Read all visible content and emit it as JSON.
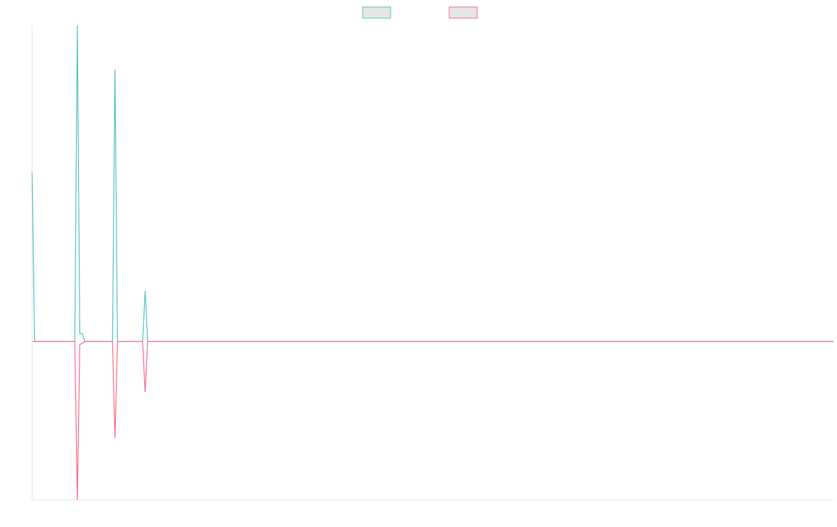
{
  "chart_data": {
    "type": "line",
    "title": "",
    "xlabel": "",
    "ylabel": "",
    "grid": false,
    "legend": "top-center",
    "x": [
      0,
      1,
      2,
      3,
      4,
      5,
      6,
      7,
      8,
      9,
      10,
      11,
      12,
      13,
      14,
      15,
      16,
      17,
      18,
      19,
      20,
      21,
      22,
      23,
      24,
      25,
      26,
      27,
      28,
      29,
      30,
      31,
      32,
      33,
      34,
      35,
      36,
      37,
      38,
      39,
      40,
      41,
      42,
      43,
      44,
      45,
      46,
      47,
      48,
      49,
      50,
      51,
      52,
      53,
      54,
      55,
      56,
      57,
      58,
      59,
      60,
      61,
      62,
      63,
      64,
      65,
      66,
      67,
      68,
      69,
      70,
      71,
      72,
      73,
      74,
      75,
      76,
      77,
      78,
      79,
      80,
      81,
      82,
      83,
      84,
      85,
      86,
      87,
      88,
      89,
      90,
      91,
      92,
      93,
      94,
      95,
      96,
      97,
      98,
      99,
      100,
      101,
      102,
      103,
      104,
      105,
      106,
      107,
      108,
      109,
      110,
      111,
      112,
      113,
      114,
      115,
      116,
      117,
      118,
      119,
      120,
      121,
      122,
      123,
      124,
      125,
      126,
      127,
      128,
      129,
      130,
      131,
      132,
      133,
      134,
      135,
      136,
      137,
      138,
      139,
      140,
      141,
      142,
      143,
      144,
      145,
      146,
      147,
      148,
      149,
      150,
      151,
      152,
      153,
      154,
      155,
      156,
      157,
      158,
      159,
      160,
      161,
      162,
      163,
      164,
      165,
      166,
      167,
      168,
      169,
      170,
      171,
      172,
      173,
      174,
      175,
      176,
      177,
      178,
      179,
      180,
      181,
      182,
      183,
      184,
      185,
      186,
      187,
      188,
      189,
      190,
      191,
      192,
      193,
      194,
      195,
      196,
      197,
      198,
      199,
      200,
      201,
      202,
      203,
      204,
      205,
      206,
      207,
      208,
      209,
      210,
      211,
      212,
      213,
      214,
      215,
      216,
      217,
      218,
      219,
      220,
      221,
      222,
      223,
      224,
      225,
      226,
      227,
      228,
      229,
      230,
      231,
      232,
      233,
      234,
      235,
      236,
      237,
      238,
      239,
      240,
      241,
      242,
      243,
      244,
      245,
      246,
      247,
      248,
      249,
      250,
      251,
      252,
      253,
      254,
      255,
      256,
      257,
      258,
      259,
      260,
      261,
      262,
      263,
      264,
      265,
      266,
      267,
      268,
      269,
      270,
      271,
      272,
      273,
      274,
      275,
      276,
      277,
      278,
      279,
      280,
      281,
      282,
      283,
      284,
      285,
      286,
      287,
      288,
      289,
      290,
      291,
      292,
      293,
      294,
      295,
      296,
      297,
      298,
      299,
      300,
      301,
      302,
      303,
      304,
      305,
      306,
      307,
      308,
      309,
      310,
      311,
      312,
      313,
      314,
      315,
      316,
      317,
      318,
      319
    ],
    "ylim": [
      -100,
      200
    ],
    "series": [
      {
        "name": "",
        "color": "#4bc0c0",
        "points": [
          [
            0,
            107
          ],
          [
            1,
            0
          ],
          [
            17,
            0
          ],
          [
            18,
            200
          ],
          [
            19,
            5
          ],
          [
            20,
            5
          ],
          [
            21,
            0
          ],
          [
            32,
            0
          ],
          [
            33,
            172
          ],
          [
            34,
            0
          ],
          [
            44,
            0
          ],
          [
            45,
            32
          ],
          [
            46,
            0
          ],
          [
            319,
            0
          ]
        ]
      },
      {
        "name": "",
        "color": "#ff6384",
        "points": [
          [
            0,
            0
          ],
          [
            17,
            0
          ],
          [
            18,
            -100
          ],
          [
            19,
            -2
          ],
          [
            20,
            -1
          ],
          [
            21,
            0
          ],
          [
            32,
            0
          ],
          [
            33,
            -61
          ],
          [
            34,
            0
          ],
          [
            44,
            0
          ],
          [
            45,
            -32
          ],
          [
            46,
            0
          ],
          [
            319,
            0
          ]
        ]
      }
    ]
  }
}
